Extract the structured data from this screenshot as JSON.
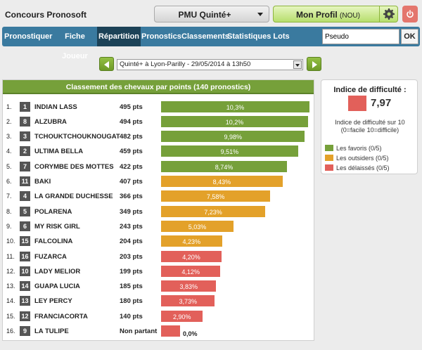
{
  "app_title": "Concours Pronosoft",
  "pmu_select": "PMU Quinté+",
  "profile": {
    "name": "Mon Profil",
    "tag": "(NOU)"
  },
  "nav": {
    "items": [
      "Pronostiquer",
      "Fiche Joueur",
      "Répartition",
      "Pronostics",
      "Classements",
      "Statistiques",
      "Lots"
    ],
    "active": "Répartition",
    "search_value": "Pseudo",
    "ok": "OK"
  },
  "race": {
    "selected": "Quinté+ à Lyon-Parilly - 29/05/2014 à 13h50"
  },
  "ranking": {
    "title": "Classement des chevaux par points (140 pronostics)",
    "rows": [
      {
        "rank": "1.",
        "num": "1",
        "horse": "INDIAN LASS",
        "pts": "495 pts",
        "pct": "10,3%",
        "value": 10.3,
        "group": "favori"
      },
      {
        "rank": "2.",
        "num": "8",
        "horse": "ALZUBRA",
        "pts": "494 pts",
        "pct": "10,2%",
        "value": 10.2,
        "group": "favori"
      },
      {
        "rank": "3.",
        "num": "3",
        "horse": "TCHOUKTCHOUKNOUGAT",
        "pts": "482 pts",
        "pct": "9,98%",
        "value": 9.98,
        "group": "favori"
      },
      {
        "rank": "4.",
        "num": "2",
        "horse": "ULTIMA BELLA",
        "pts": "459 pts",
        "pct": "9,51%",
        "value": 9.51,
        "group": "favori"
      },
      {
        "rank": "5.",
        "num": "7",
        "horse": "CORYMBE DES MOTTES",
        "pts": "422 pts",
        "pct": "8,74%",
        "value": 8.74,
        "group": "favori"
      },
      {
        "rank": "6.",
        "num": "11",
        "horse": "BAKI",
        "pts": "407 pts",
        "pct": "8,43%",
        "value": 8.43,
        "group": "outsider"
      },
      {
        "rank": "7.",
        "num": "4",
        "horse": "LA GRANDE DUCHESSE",
        "pts": "366 pts",
        "pct": "7,58%",
        "value": 7.58,
        "group": "outsider"
      },
      {
        "rank": "8.",
        "num": "5",
        "horse": "POLARENA",
        "pts": "349 pts",
        "pct": "7,23%",
        "value": 7.23,
        "group": "outsider"
      },
      {
        "rank": "9.",
        "num": "6",
        "horse": "MY RISK GIRL",
        "pts": "243 pts",
        "pct": "5,03%",
        "value": 5.03,
        "group": "outsider"
      },
      {
        "rank": "10.",
        "num": "15",
        "horse": "FALCOLINA",
        "pts": "204 pts",
        "pct": "4,23%",
        "value": 4.23,
        "group": "outsider"
      },
      {
        "rank": "11.",
        "num": "16",
        "horse": "FUZARCA",
        "pts": "203 pts",
        "pct": "4,20%",
        "value": 4.2,
        "group": "delaisse"
      },
      {
        "rank": "12.",
        "num": "10",
        "horse": "LADY MELIOR",
        "pts": "199 pts",
        "pct": "4,12%",
        "value": 4.12,
        "group": "delaisse"
      },
      {
        "rank": "13.",
        "num": "14",
        "horse": "GUAPA LUCIA",
        "pts": "185 pts",
        "pct": "3,83%",
        "value": 3.83,
        "group": "delaisse"
      },
      {
        "rank": "14.",
        "num": "13",
        "horse": "LEY PERCY",
        "pts": "180 pts",
        "pct": "3,73%",
        "value": 3.73,
        "group": "delaisse"
      },
      {
        "rank": "15.",
        "num": "12",
        "horse": "FRANCIACORTA",
        "pts": "140 pts",
        "pct": "2,90%",
        "value": 2.9,
        "group": "delaisse"
      },
      {
        "rank": "16.",
        "num": "9",
        "horse": "LA TULIPE",
        "pts": "Non partant",
        "pct": "0,0%",
        "value": 0,
        "group": "delaisse"
      }
    ]
  },
  "difficulty": {
    "title": "Indice de difficulté :",
    "value": "7,97",
    "desc": "Indice de difficulté sur 10 (0=facile 10=difficile)",
    "legend": [
      {
        "label": "Les favoris (0/5)",
        "color": "#76a03a"
      },
      {
        "label": "Les outsiders (0/5)",
        "color": "#e3a12a"
      },
      {
        "label": "Les délaissés (0/5)",
        "color": "#e2605a"
      }
    ]
  },
  "colors": {
    "favori": "#76a03a",
    "outsider": "#e3a12a",
    "delaisse": "#e2605a"
  }
}
